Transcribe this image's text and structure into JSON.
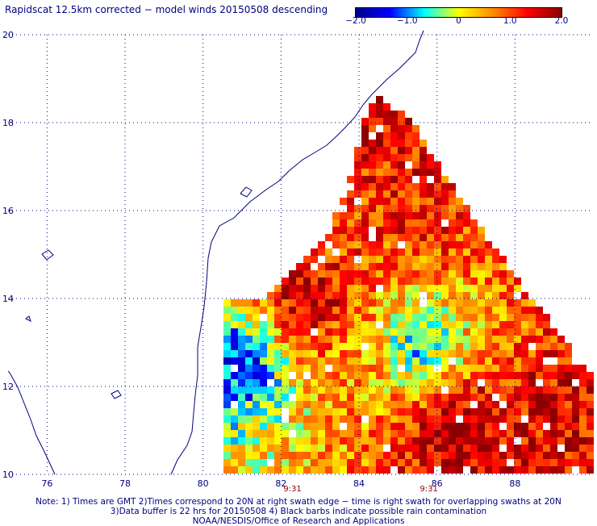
{
  "title": "Rapidscat 12.5km corrected − model winds 20150508 descending",
  "colorbar": {
    "ticks": [
      "−2.0",
      "−1.0",
      "0",
      "1.0",
      "2.0"
    ],
    "tick_values": [
      -2.0,
      -1.0,
      0,
      1.0,
      2.0
    ],
    "range": [
      -2.0,
      2.0
    ],
    "colors": [
      "#00008b",
      "#0000ff",
      "#00ffff",
      "#ffff00",
      "#ff8c00",
      "#ff0000",
      "#8b0000"
    ]
  },
  "map": {
    "lat_ticks": [
      "20",
      "18",
      "16",
      "14",
      "12",
      "10"
    ],
    "lat_values": [
      20,
      18,
      16,
      14,
      12,
      10
    ],
    "lon_ticks": [
      "76",
      "78",
      "80",
      "82",
      "84",
      "86",
      "88"
    ],
    "lon_values": [
      76,
      78,
      80,
      82,
      84,
      86,
      88
    ],
    "lon_range": [
      75,
      90
    ],
    "lat_range": [
      10,
      20
    ],
    "grid": "dotted",
    "times": [
      {
        "label": "9:31",
        "lon": 82.5
      },
      {
        "label": "9:31",
        "lon": 86.0
      }
    ],
    "coast_color": "#000080",
    "wind_difference_swath": [
      {
        "lon": 84.6,
        "lat": 18.5,
        "value": 1.8
      },
      {
        "lon": 85.5,
        "lat": 17.5,
        "value": 1.2
      },
      {
        "lon": 85.5,
        "lat": 16.0,
        "value": 1.3
      },
      {
        "lon": 82.8,
        "lat": 13.8,
        "value": 2.0
      },
      {
        "lon": 84.0,
        "lat": 13.0,
        "value": 0.6
      },
      {
        "lon": 81.0,
        "lat": 12.5,
        "value": -1.5
      },
      {
        "lon": 85.5,
        "lat": 13.0,
        "value": -1.0
      },
      {
        "lon": 86.5,
        "lat": 11.0,
        "value": 2.0
      },
      {
        "lon": 89.0,
        "lat": 11.5,
        "value": 1.5
      }
    ]
  },
  "notes": [
    "Note: 1) Times are GMT 2)Times correspond to 20N at right swath edge − time is right swath for overlapping swaths at 20N",
    "3)Data buffer is 22 hrs for 20150508 4) Black barbs indicate possible rain contamination",
    "NOAA/NESDIS/Office of Research and Applications"
  ]
}
